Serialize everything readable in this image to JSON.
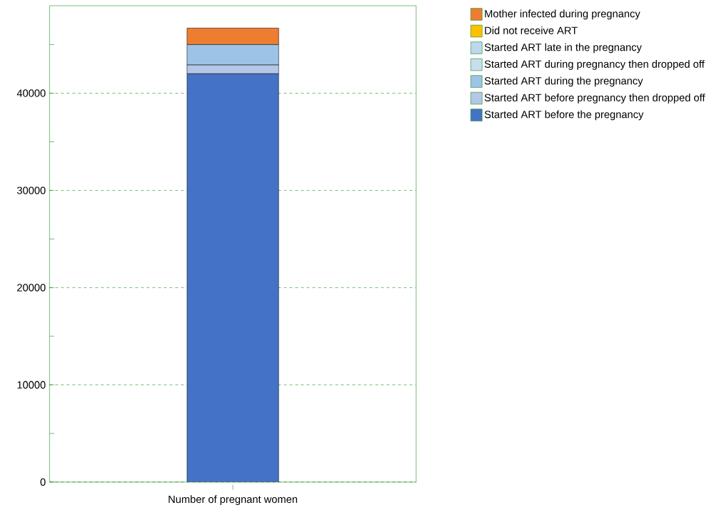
{
  "chart_data": {
    "type": "bar",
    "stacked": true,
    "categories": [
      "Number of pregnant women"
    ],
    "series": [
      {
        "name": "Started ART before the pregnancy",
        "color": "#4472c4",
        "values": [
          42000
        ]
      },
      {
        "name": "Started ART before pregnancy then dropped off",
        "color": "#b4c7e7",
        "values": [
          900
        ]
      },
      {
        "name": "Started ART during the pregnancy",
        "color": "#9dc3e6",
        "values": [
          2100
        ]
      },
      {
        "name": "Started ART during pregnancy then dropped off",
        "color": "#c9ddf0",
        "values": [
          0
        ]
      },
      {
        "name": "Started ART late in the pregnancy",
        "color": "#bdd7ee",
        "values": [
          0
        ]
      },
      {
        "name": "Did not receive ART",
        "color": "#ffc000",
        "values": [
          0
        ]
      },
      {
        "name": "Mother infected during pregnancy",
        "color": "#ed7d31",
        "values": [
          1700
        ]
      }
    ],
    "ylim": [
      0,
      49000
    ],
    "yticks": [
      0,
      {
        "value": 5000,
        "label": null
      },
      10000,
      {
        "value": 15000,
        "label": null
      },
      20000,
      {
        "value": 25000,
        "label": null
      },
      30000,
      {
        "value": 35000,
        "label": null
      },
      40000,
      {
        "value": 45000,
        "label": null
      }
    ],
    "grid": "y",
    "legend": "top right"
  }
}
